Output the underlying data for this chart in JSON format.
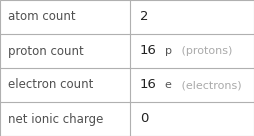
{
  "rows": [
    {
      "label": "atom count",
      "value_main": "2",
      "value_unit": "",
      "unit_label": ""
    },
    {
      "label": "proton count",
      "value_main": "16",
      "value_unit": "p",
      "unit_label": " (protons)"
    },
    {
      "label": "electron count",
      "value_main": "16",
      "value_unit": "e",
      "unit_label": " (electrons)"
    },
    {
      "label": "net ionic charge",
      "value_main": "0",
      "value_unit": "",
      "unit_label": ""
    }
  ],
  "col_split": 0.51,
  "bg_color": "#ffffff",
  "border_color": "#b0b0b0",
  "label_color": "#505050",
  "value_color": "#222222",
  "unit_letter_color": "#555555",
  "unit_paren_color": "#aaaaaa",
  "label_fontsize": 8.5,
  "value_fontsize": 9.5,
  "unit_fontsize": 8.0
}
